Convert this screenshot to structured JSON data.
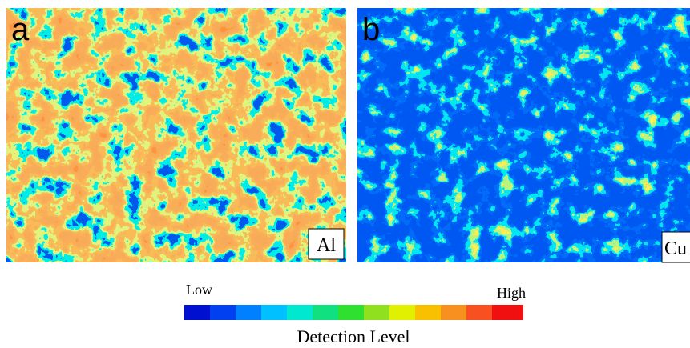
{
  "panels": [
    {
      "label": "a",
      "element": "Al"
    },
    {
      "label": "b",
      "element": "Cu"
    }
  ],
  "colorbar": {
    "low": "Low",
    "high": "High",
    "title": "Detection Level"
  }
}
